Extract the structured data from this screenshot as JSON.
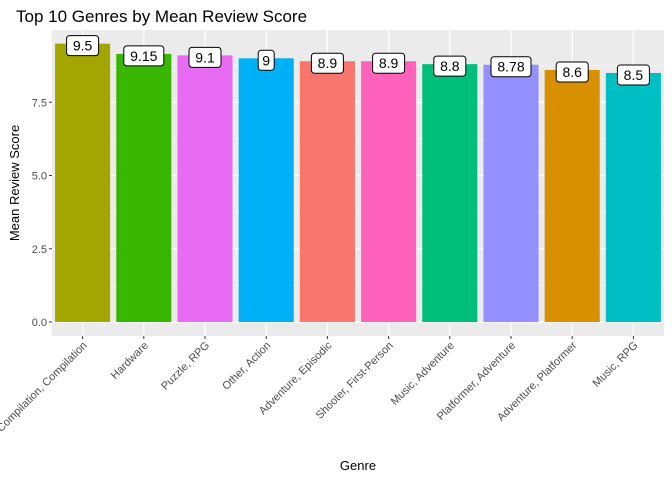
{
  "chart_data": {
    "type": "bar",
    "title": "Top 10 Genres by Mean Review Score",
    "xlabel": "Genre",
    "ylabel": "Mean Review Score",
    "ylim": [
      0,
      9.5
    ],
    "yticks": [
      0.0,
      2.5,
      5.0,
      7.5
    ],
    "ytick_labels": [
      "0.0",
      "2.5",
      "5.0",
      "7.5"
    ],
    "grid": true,
    "legend": "none",
    "categories": [
      "Compilation, Compilation",
      "Hardware",
      "Puzzle, RPG",
      "Other, Action",
      "Adventure, Episodic",
      "Shooter, First-Person",
      "Music, Adventure",
      "Platformer, Adventure",
      "Adventure, Platformer",
      "Music, RPG"
    ],
    "values": [
      9.5,
      9.15,
      9.1,
      9.0,
      8.9,
      8.9,
      8.8,
      8.78,
      8.6,
      8.5
    ],
    "labels": [
      "9.5",
      "9.15",
      "9.1",
      "9",
      "8.9",
      "8.9",
      "8.8",
      "8.78",
      "8.6",
      "8.5"
    ],
    "colors": [
      "#A3A500",
      "#39B600",
      "#E76BF3",
      "#00B0F6",
      "#F8766D",
      "#FF62BC",
      "#00BF7D",
      "#9590FF",
      "#D89000",
      "#00BFC4"
    ],
    "panel_background": "#EBEBEB",
    "grid_color": "#FFFFFF"
  }
}
